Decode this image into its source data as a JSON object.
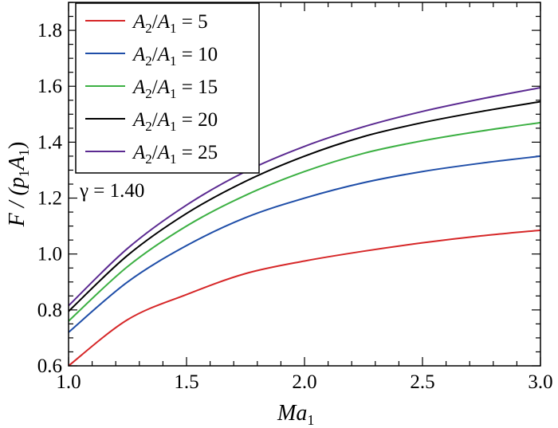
{
  "chart_data": {
    "type": "line",
    "xlabel": "Ma",
    "xlabel_sub": "1",
    "ylabel": "F / (p",
    "ylabel_sub": "1",
    "ylabel_mid": "A",
    "ylabel_sub2": "1",
    "ylabel_end": ")",
    "xlim": [
      1.0,
      3.0
    ],
    "ylim": [
      0.6,
      1.9
    ],
    "x_ticks": [
      "1.0",
      "1.5",
      "2.0",
      "2.5",
      "3.0"
    ],
    "y_ticks": [
      "0.6",
      "0.8",
      "1.0",
      "1.2",
      "1.4",
      "1.6",
      "1.8"
    ],
    "annotation": "γ = 1.40",
    "legend_position": "top-left",
    "grid": false,
    "x": [
      1.0,
      1.25,
      1.5,
      1.75,
      2.0,
      2.25,
      2.5,
      2.75,
      3.0
    ],
    "series": [
      {
        "name_pre": "A",
        "name_sub1": "2",
        "name_mid": "/A",
        "name_sub2": "1",
        "name_post": " = 5",
        "color": "#d62728",
        "values": [
          0.6,
          0.765,
          0.855,
          0.93,
          0.975,
          1.01,
          1.04,
          1.065,
          1.085
        ]
      },
      {
        "name_pre": "A",
        "name_sub1": "2",
        "name_mid": "/A",
        "name_sub2": "1",
        "name_post": " = 10",
        "color": "#1f4ea8",
        "values": [
          0.72,
          0.9,
          1.03,
          1.13,
          1.2,
          1.255,
          1.295,
          1.325,
          1.35
        ]
      },
      {
        "name_pre": "A",
        "name_sub1": "2",
        "name_mid": "/A",
        "name_sub2": "1",
        "name_post": " = 15",
        "color": "#3cb043",
        "values": [
          0.76,
          0.955,
          1.1,
          1.21,
          1.295,
          1.36,
          1.405,
          1.44,
          1.47
        ]
      },
      {
        "name_pre": "A",
        "name_sub1": "2",
        "name_mid": "/A",
        "name_sub2": "1",
        "name_post": " = 20",
        "color": "#000000",
        "values": [
          0.795,
          0.995,
          1.145,
          1.26,
          1.35,
          1.42,
          1.47,
          1.51,
          1.545
        ]
      },
      {
        "name_pre": "A",
        "name_sub1": "2",
        "name_mid": "/A",
        "name_sub2": "1",
        "name_post": " = 25",
        "color": "#5b2a91",
        "values": [
          0.815,
          1.02,
          1.175,
          1.295,
          1.385,
          1.455,
          1.51,
          1.555,
          1.595
        ]
      }
    ]
  }
}
